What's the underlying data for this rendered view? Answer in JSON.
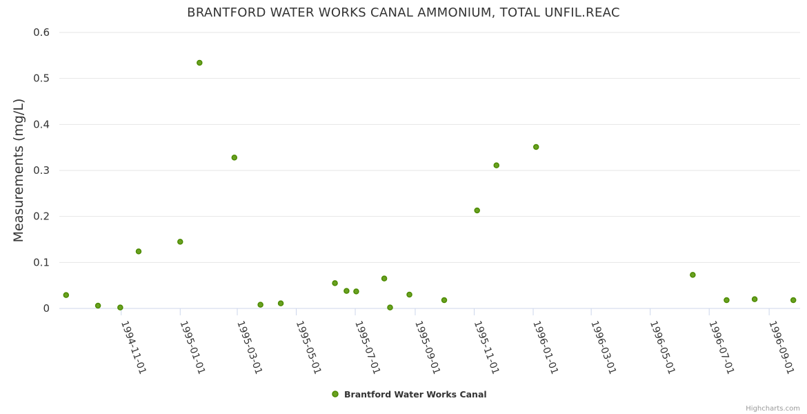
{
  "chart_data": {
    "type": "scatter",
    "title": "BRANTFORD WATER WORKS CANAL AMMONIUM, TOTAL UNFIL.REAC",
    "xlabel": "",
    "ylabel": "Measurements (mg/L)",
    "ylim": [
      0,
      0.6
    ],
    "y_ticks": [
      "0",
      "0.1",
      "0.2",
      "0.3",
      "0.4",
      "0.5",
      "0.6"
    ],
    "xlim": [
      "1994-08-29",
      "1996-10-03"
    ],
    "x_ticks": [
      "1994-11-01",
      "1995-01-01",
      "1995-03-01",
      "1995-05-01",
      "1995-07-01",
      "1995-09-01",
      "1995-11-01",
      "1996-01-01",
      "1996-03-01",
      "1996-05-01",
      "1996-07-01",
      "1996-09-01"
    ],
    "grid": true,
    "legend_position": "bottom-center",
    "series": [
      {
        "name": "Brantford Water Works Canal",
        "color": "#7cb5ec",
        "marker_fill": "#6aa121",
        "marker_stroke": "#4b8a00",
        "points": [
          {
            "x": "1994-09-05",
            "y": 0.029
          },
          {
            "x": "1994-10-08",
            "y": 0.006
          },
          {
            "x": "1994-10-31",
            "y": 0.002
          },
          {
            "x": "1994-11-19",
            "y": 0.124
          },
          {
            "x": "1995-01-01",
            "y": 0.145
          },
          {
            "x": "1995-01-21",
            "y": 0.534
          },
          {
            "x": "1995-02-26",
            "y": 0.328
          },
          {
            "x": "1995-03-25",
            "y": 0.008
          },
          {
            "x": "1995-04-15",
            "y": 0.011
          },
          {
            "x": "1995-06-10",
            "y": 0.055
          },
          {
            "x": "1995-06-22",
            "y": 0.038
          },
          {
            "x": "1995-07-02",
            "y": 0.037
          },
          {
            "x": "1995-07-31",
            "y": 0.065
          },
          {
            "x": "1995-08-06",
            "y": 0.002
          },
          {
            "x": "1995-08-26",
            "y": 0.03
          },
          {
            "x": "1995-10-01",
            "y": 0.018
          },
          {
            "x": "1995-11-04",
            "y": 0.213
          },
          {
            "x": "1995-11-24",
            "y": 0.311
          },
          {
            "x": "1996-01-04",
            "y": 0.351
          },
          {
            "x": "1996-06-14",
            "y": 0.073
          },
          {
            "x": "1996-07-19",
            "y": 0.018
          },
          {
            "x": "1996-08-17",
            "y": 0.02
          },
          {
            "x": "1996-09-26",
            "y": 0.018
          }
        ]
      }
    ]
  },
  "credits": "Highcharts.com"
}
